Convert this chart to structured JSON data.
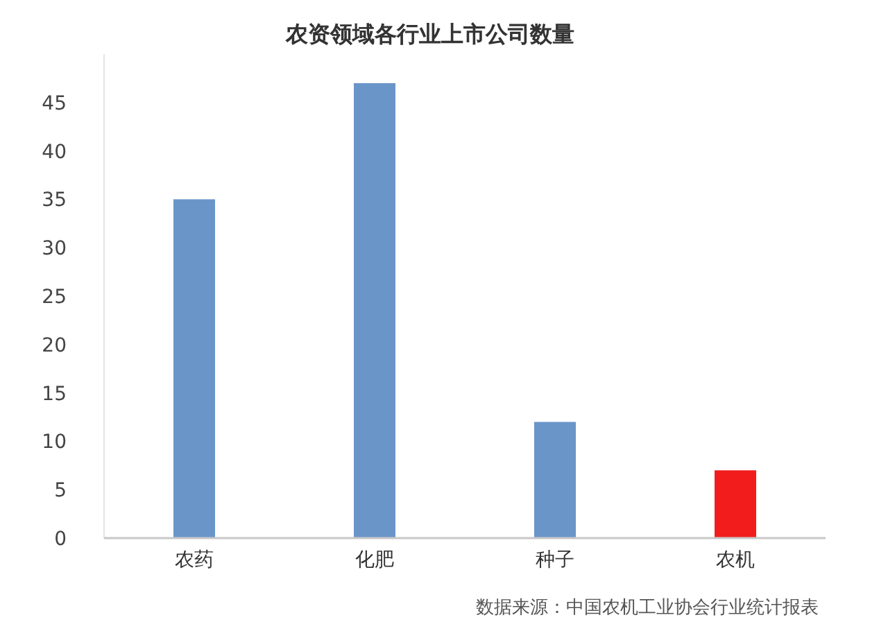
{
  "chart_data": {
    "type": "bar",
    "title": "农资领域各行业上市公司数量",
    "categories": [
      "农药",
      "化肥",
      "种子",
      "农机"
    ],
    "values": [
      35,
      47,
      12,
      7
    ],
    "colors": [
      "#6a95c9",
      "#6a95c9",
      "#6a95c9",
      "#f21c1c"
    ],
    "ylim": [
      0,
      50
    ],
    "yticks": [
      0,
      5,
      10,
      15,
      20,
      25,
      30,
      35,
      40,
      45
    ],
    "grid": false,
    "annotations": [
      "数据来源：中国农机工业协会行业统计报表"
    ]
  }
}
